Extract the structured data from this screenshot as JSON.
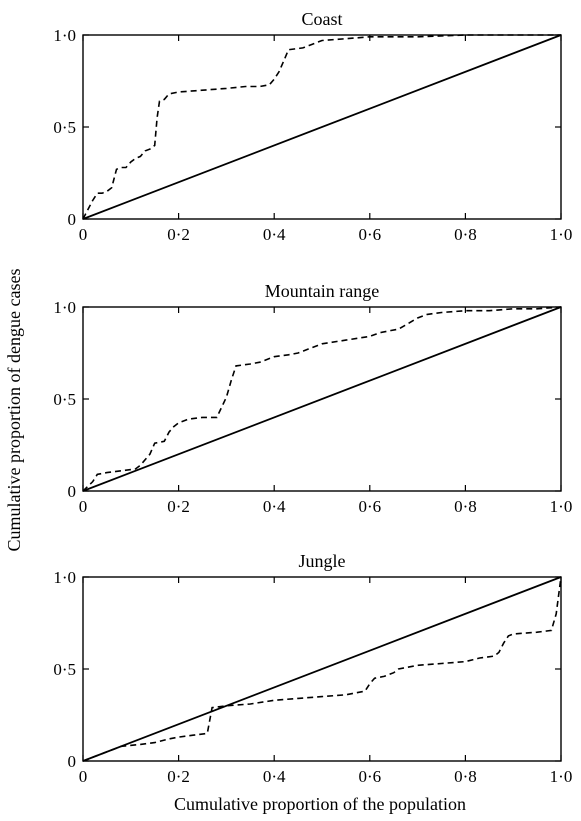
{
  "figure": {
    "ylabel": "Cumulative proportion of dengue cases",
    "xlabel": "Cumulative proportion of the population"
  },
  "chart_data": [
    {
      "type": "line",
      "title": "Coast",
      "xlim": [
        0,
        1
      ],
      "ylim": [
        0,
        1
      ],
      "x_ticks": [
        "0",
        "0·2",
        "0·4",
        "0·6",
        "0·8",
        "1·0"
      ],
      "y_ticks": [
        "0",
        "0·5",
        "1·0"
      ],
      "series": [
        {
          "style": "solid",
          "x": [
            0,
            1
          ],
          "y": [
            0,
            1
          ]
        },
        {
          "style": "dashed",
          "x": [
            0,
            0.01,
            0.02,
            0.03,
            0.04,
            0.05,
            0.06,
            0.065,
            0.07,
            0.08,
            0.09,
            0.1,
            0.11,
            0.12,
            0.13,
            0.14,
            0.15,
            0.155,
            0.16,
            0.17,
            0.18,
            0.2,
            0.25,
            0.3,
            0.34,
            0.37,
            0.39,
            0.4,
            0.41,
            0.42,
            0.43,
            0.46,
            0.48,
            0.5,
            0.55,
            0.6,
            0.7,
            0.8,
            0.9,
            1.0
          ],
          "y": [
            0,
            0.05,
            0.1,
            0.14,
            0.14,
            0.15,
            0.17,
            0.22,
            0.27,
            0.28,
            0.28,
            0.31,
            0.33,
            0.34,
            0.37,
            0.38,
            0.4,
            0.55,
            0.64,
            0.65,
            0.68,
            0.69,
            0.7,
            0.71,
            0.72,
            0.72,
            0.73,
            0.76,
            0.8,
            0.86,
            0.92,
            0.93,
            0.95,
            0.97,
            0.98,
            0.99,
            0.99,
            1.0,
            1.0,
            1.0
          ]
        }
      ]
    },
    {
      "type": "line",
      "title": "Mountain range",
      "xlim": [
        0,
        1
      ],
      "ylim": [
        0,
        1
      ],
      "x_ticks": [
        "0",
        "0·2",
        "0·4",
        "0·6",
        "0·8",
        "1·0"
      ],
      "y_ticks": [
        "0",
        "0·5",
        "1·0"
      ],
      "series": [
        {
          "style": "solid",
          "x": [
            0,
            1
          ],
          "y": [
            0,
            1
          ]
        },
        {
          "style": "dashed",
          "x": [
            0,
            0.02,
            0.03,
            0.05,
            0.08,
            0.11,
            0.12,
            0.14,
            0.15,
            0.17,
            0.18,
            0.19,
            0.2,
            0.22,
            0.25,
            0.28,
            0.3,
            0.31,
            0.32,
            0.35,
            0.37,
            0.4,
            0.43,
            0.45,
            0.47,
            0.5,
            0.55,
            0.6,
            0.62,
            0.64,
            0.66,
            0.68,
            0.7,
            0.72,
            0.75,
            0.8,
            0.85,
            0.9,
            0.95,
            1.0
          ],
          "y": [
            0,
            0.05,
            0.09,
            0.1,
            0.11,
            0.12,
            0.14,
            0.2,
            0.26,
            0.27,
            0.32,
            0.35,
            0.37,
            0.39,
            0.4,
            0.4,
            0.51,
            0.6,
            0.68,
            0.69,
            0.7,
            0.73,
            0.74,
            0.75,
            0.77,
            0.8,
            0.82,
            0.84,
            0.86,
            0.87,
            0.88,
            0.91,
            0.94,
            0.96,
            0.97,
            0.98,
            0.98,
            0.99,
            0.99,
            1.0
          ]
        }
      ]
    },
    {
      "type": "line",
      "title": "Jungle",
      "xlim": [
        0,
        1
      ],
      "ylim": [
        0,
        1
      ],
      "x_ticks": [
        "0",
        "0·2",
        "0·4",
        "0·6",
        "0·8",
        "1·0"
      ],
      "y_ticks": [
        "0",
        "0·5",
        "1·0"
      ],
      "series": [
        {
          "style": "solid",
          "x": [
            0,
            1
          ],
          "y": [
            0,
            1
          ]
        },
        {
          "style": "dashed",
          "x": [
            0,
            0.03,
            0.05,
            0.08,
            0.12,
            0.15,
            0.18,
            0.2,
            0.23,
            0.26,
            0.265,
            0.27,
            0.3,
            0.35,
            0.4,
            0.45,
            0.5,
            0.55,
            0.59,
            0.6,
            0.61,
            0.63,
            0.65,
            0.66,
            0.7,
            0.75,
            0.8,
            0.83,
            0.86,
            0.87,
            0.88,
            0.89,
            0.9,
            0.95,
            0.98,
            0.99,
            1.0
          ],
          "y": [
            0,
            0.03,
            0.05,
            0.08,
            0.09,
            0.1,
            0.12,
            0.13,
            0.14,
            0.15,
            0.22,
            0.29,
            0.3,
            0.31,
            0.33,
            0.34,
            0.35,
            0.36,
            0.38,
            0.42,
            0.45,
            0.46,
            0.48,
            0.5,
            0.52,
            0.53,
            0.54,
            0.56,
            0.57,
            0.59,
            0.64,
            0.68,
            0.69,
            0.7,
            0.71,
            0.8,
            1.0
          ]
        }
      ]
    }
  ]
}
